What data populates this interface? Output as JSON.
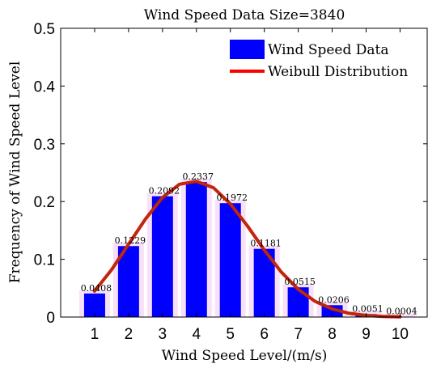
{
  "chart_data": {
    "type": "bar",
    "title": "Wind Speed Data Size=3840",
    "xlabel": "Wind Speed Level/(m/s)",
    "ylabel": "Frequency of Wind Speed Level",
    "categories": [
      "1",
      "2",
      "3",
      "4",
      "5",
      "6",
      "7",
      "8",
      "9",
      "10"
    ],
    "series": [
      {
        "name": "Wind Speed Data",
        "type": "bar",
        "color": "#0000FF",
        "values": [
          0.0408,
          0.1229,
          0.2092,
          0.2337,
          0.1972,
          0.1181,
          0.0515,
          0.0206,
          0.0051,
          0.0004
        ]
      },
      {
        "name": "Weibull Distribution",
        "type": "line",
        "color": "#FF0000",
        "overlay_color": "#8B4513",
        "x": [
          1,
          1.5,
          2,
          2.5,
          3,
          3.5,
          4,
          4.5,
          5,
          5.5,
          6,
          6.5,
          7,
          7.5,
          8,
          8.5,
          9,
          9.5,
          10
        ],
        "values": [
          0.045,
          0.082,
          0.126,
          0.17,
          0.207,
          0.23,
          0.235,
          0.224,
          0.196,
          0.158,
          0.116,
          0.078,
          0.048,
          0.027,
          0.014,
          0.0065,
          0.0028,
          0.0011,
          0.0004
        ]
      }
    ],
    "data_labels": [
      "0.0408",
      "0.1229",
      "0.2092",
      "0.2337",
      "0.1972",
      "0.1181",
      "0.0515",
      "0.0206",
      "0.0051",
      "0.0004"
    ],
    "xlim": [
      0,
      10.8
    ],
    "ylim": [
      0,
      0.5
    ],
    "yticks": [
      "0",
      "0.1",
      "0.2",
      "0.3",
      "0.4",
      "0.5"
    ],
    "xticks": [
      "1",
      "2",
      "3",
      "4",
      "5",
      "6",
      "7",
      "8",
      "9",
      "10"
    ],
    "grid": false,
    "legend_position": "top-right"
  }
}
